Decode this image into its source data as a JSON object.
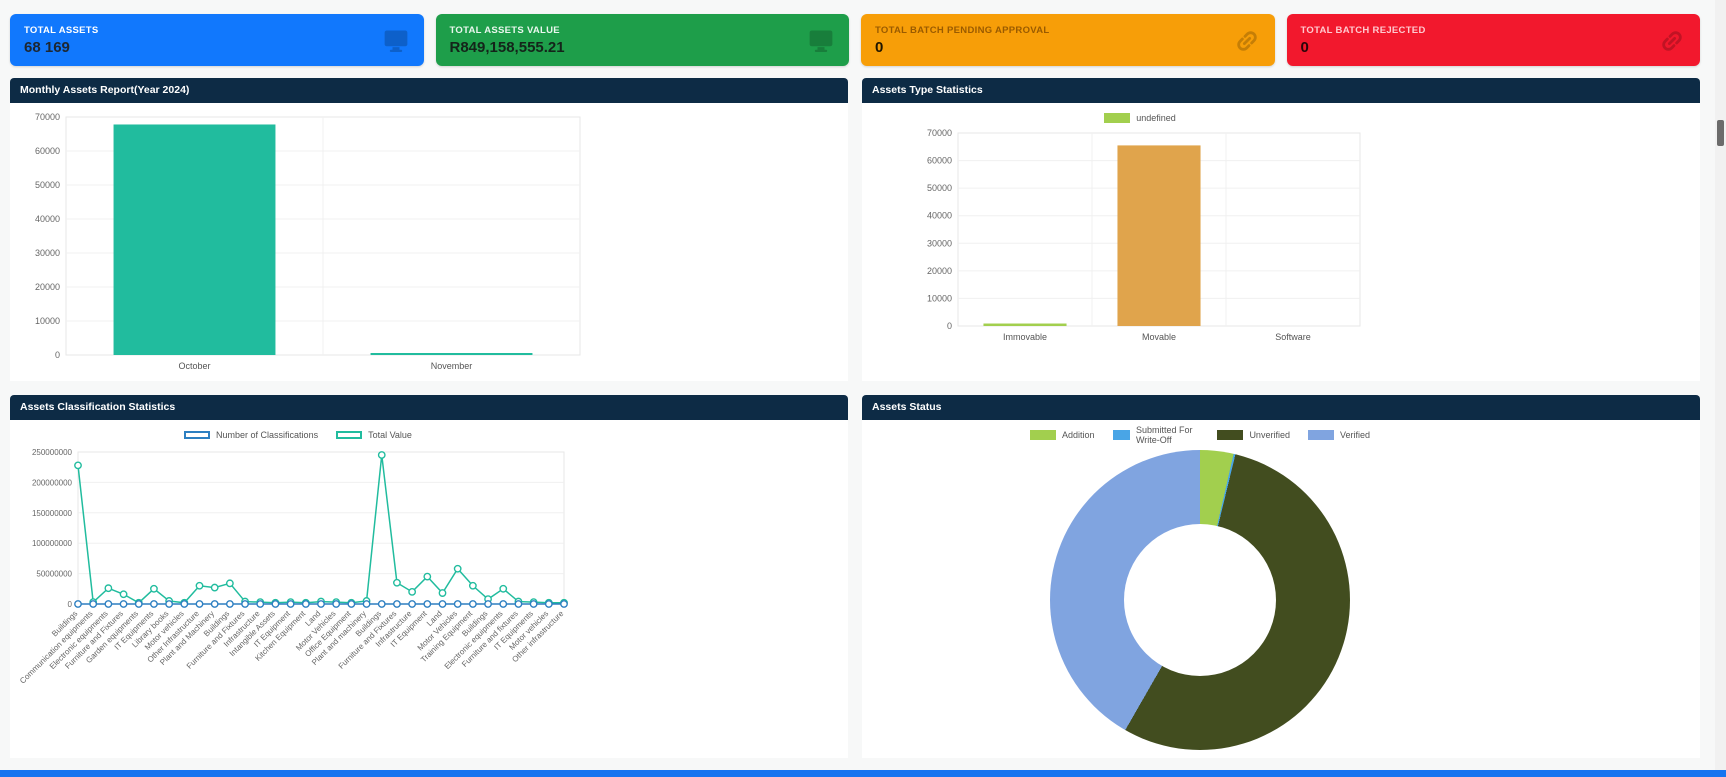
{
  "page": {
    "background": "#f7f8f8",
    "footer_bar_color": "#1674f0"
  },
  "cards": [
    {
      "label": "TOTAL ASSETS",
      "value": "68 169",
      "bg": "#1178fd",
      "label_color": "#ffffff",
      "value_color": "#1d2731",
      "icon": "monitor-icon"
    },
    {
      "label": "TOTAL ASSETS VALUE",
      "value": "R849,158,555.21",
      "bg": "#1e9e4a",
      "label_color": "#eaf7ee",
      "value_color": "#14241a",
      "icon": "monitor-icon"
    },
    {
      "label": "TOTAL BATCH PENDING APPROVAL",
      "value": "0",
      "bg": "#f79e08",
      "label_color": "#9a5b00",
      "value_color": "#201600",
      "icon": "link-icon"
    },
    {
      "label": "TOTAL BATCH REJECTED",
      "value": "0",
      "bg": "#f2182d",
      "label_color": "#ffc9cf",
      "value_color": "#2a0509",
      "icon": "link-icon"
    }
  ],
  "panels": {
    "monthly": {
      "title": "Monthly Assets Report(Year 2024)"
    },
    "types": {
      "title": "Assets Type Statistics"
    },
    "classification": {
      "title": "Assets Classification Statistics"
    },
    "status": {
      "title": "Assets Status"
    }
  },
  "chart_data": [
    {
      "id": "monthly",
      "type": "bar",
      "title": "Monthly Assets Report(Year 2024)",
      "categories": [
        "October",
        "November"
      ],
      "values": [
        67800,
        350
      ],
      "bar_colors": [
        "#21bc9e",
        "#21bc9e"
      ],
      "ylim": [
        0,
        70000
      ],
      "ytick_step": 10000,
      "grid": true,
      "legend": []
    },
    {
      "id": "types",
      "type": "bar",
      "title": "Assets Type Statistics",
      "categories": [
        "Immovable",
        "Movable",
        "Software"
      ],
      "values": [
        900,
        65500,
        0
      ],
      "bar_colors": [
        "#a2cf4e",
        "#e0a44c",
        "#cccccc"
      ],
      "ylim": [
        0,
        70000
      ],
      "ytick_step": 10000,
      "grid": true,
      "legend": [
        {
          "label": "undefined",
          "color": "#a2cf4e",
          "style": "filled"
        }
      ],
      "legend_position": "top"
    },
    {
      "id": "classification",
      "type": "line",
      "title": "Assets Classification Statistics",
      "categories": [
        "Buildings",
        "Communication equipments",
        "Electronic equipments",
        "Furniture and Fixtures",
        "Garden equipments",
        "IT Equipments",
        "Library books",
        "Motor vehicles",
        "Other Infrastructure",
        "Plant and Machinery",
        "Buildings",
        "Furniture and Fixtures",
        "Infrastructure",
        "Intangible Assets",
        "IT Equipment",
        "Kitchen Equipment",
        "Land",
        "Motor Vehicles",
        "Office Equipment",
        "Plant and machinery",
        "Buildings",
        "Furniture and Fixtures",
        "Infrastructure",
        "IT Equipment",
        "Land",
        "Motor Vehicles",
        "Training Equipment",
        "Buildings",
        "Electronic equipments",
        "Furniture and fixtures",
        "IT Equipments",
        "Motor vehicles",
        "Other infrastructure"
      ],
      "series": [
        {
          "name": "Number of Classifications",
          "color": "#2d7fc1",
          "values": [
            2100,
            400,
            3200,
            2600,
            180,
            2900,
            800,
            1100,
            150,
            900,
            600,
            450,
            120,
            80,
            1500,
            90,
            60,
            700,
            400,
            300,
            1400,
            800,
            250,
            1900,
            100,
            1600,
            200,
            500,
            1100,
            650,
            800,
            350,
            80
          ]
        },
        {
          "name": "Total Value",
          "color": "#21bc9e",
          "values": [
            228000000,
            3000000,
            26000000,
            16000000,
            2000000,
            25000000,
            5000000,
            2000000,
            30000000,
            27000000,
            34000000,
            4000000,
            3000000,
            2000000,
            3000000,
            2000000,
            4000000,
            3000000,
            2000000,
            5000000,
            245000000,
            35000000,
            20000000,
            45000000,
            18000000,
            58000000,
            30000000,
            8000000,
            25000000,
            4000000,
            3000000,
            2000000,
            2000000
          ]
        }
      ],
      "ylim": [
        0,
        250000000
      ],
      "ytick_step": 50000000,
      "grid": true,
      "legend_style": "outline",
      "legend_position": "top"
    },
    {
      "id": "status",
      "type": "pie",
      "title": "Assets Status",
      "slices": [
        {
          "label": "Addition",
          "color": "#a2cf4e",
          "fraction": 0.036
        },
        {
          "label": "Submitted For Write-Off",
          "color": "#49a5e6",
          "fraction": 0.002
        },
        {
          "label": "Unverified",
          "color": "#424d1f",
          "fraction": 0.545
        },
        {
          "label": "Verified",
          "color": "#80a4e0",
          "fraction": 0.417
        }
      ],
      "doughnut_hole_ratio": 0.5,
      "legend_position": "top"
    }
  ]
}
